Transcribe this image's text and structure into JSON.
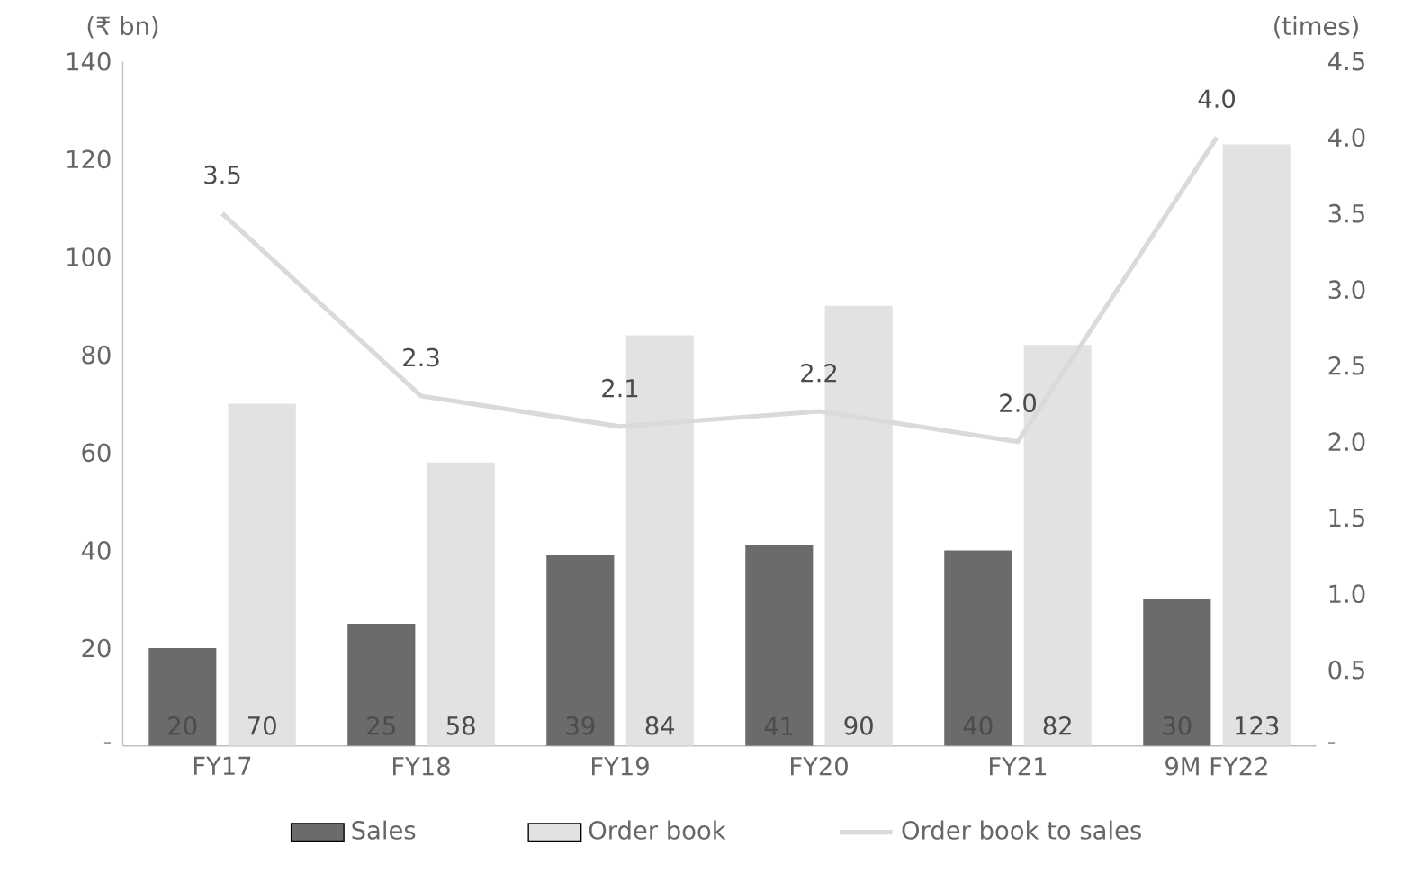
{
  "chart_data": {
    "type": "bar",
    "ylabel": "(₹ bn)",
    "y2label": "(times)",
    "categories": [
      "FY17",
      "FY18",
      "FY19",
      "FY20",
      "FY21",
      "9M FY22"
    ],
    "series": [
      {
        "name": "Sales",
        "color": "#6b6b6b",
        "values": [
          20,
          25,
          39,
          41,
          40,
          30
        ]
      },
      {
        "name": "Order book",
        "color": "#e2e2e2",
        "values": [
          70,
          58,
          84,
          90,
          82,
          123
        ]
      },
      {
        "name": "Order book to sales",
        "type": "line",
        "axis": "y2",
        "color": "#dadada",
        "values": [
          3.5,
          2.3,
          2.1,
          2.2,
          2.0,
          4.0
        ],
        "value_labels": [
          "3.5",
          "2.3",
          "2.1",
          "2.2",
          "2.0",
          "4.0"
        ]
      }
    ],
    "ylim": [
      0,
      140
    ],
    "yticks": [
      {
        "value": 0,
        "label": "-"
      },
      20,
      40,
      60,
      80,
      100,
      120,
      140
    ],
    "y2lim": [
      0,
      4.5
    ],
    "y2ticks": [
      {
        "value": 0,
        "label": "-"
      },
      0.5,
      {
        "value": 1,
        "label": "1.0"
      },
      1.5,
      {
        "value": 2,
        "label": "2.0"
      },
      2.5,
      {
        "value": 3,
        "label": "3.0"
      },
      3.5,
      {
        "value": 4,
        "label": "4.0"
      },
      4.5
    ],
    "data_labels": true,
    "legend": "bottom",
    "grid": false
  }
}
